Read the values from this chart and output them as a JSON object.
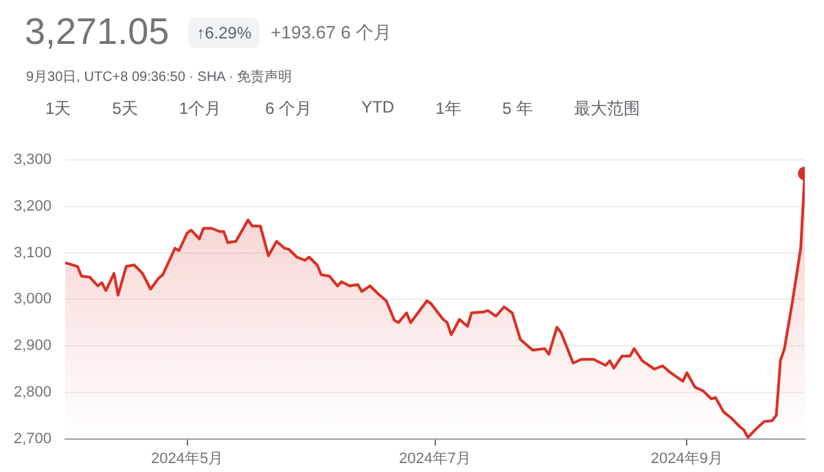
{
  "chart_data": {
    "type": "area",
    "title": "3,271.05",
    "subtitle": "9月30日, UTC+8 09:36:50 · SHA · 免责声明",
    "annotations": [
      "↑6.29%",
      "+193.67 6 个月",
      "1天",
      "5天",
      "1个月",
      "6 个月",
      "YTD",
      "1年",
      "5 年",
      "最大范围"
    ],
    "x": [
      "2024-04-01",
      "2024-04-04",
      "2024-04-05",
      "2024-04-07",
      "2024-04-09",
      "2024-04-10",
      "2024-04-11",
      "2024-04-13",
      "2024-04-14",
      "2024-04-16",
      "2024-04-18",
      "2024-04-20",
      "2024-04-22",
      "2024-04-24",
      "2024-04-25",
      "2024-04-28",
      "2024-04-29",
      "2024-05-01",
      "2024-05-02",
      "2024-05-04",
      "2024-05-05",
      "2024-05-07",
      "2024-05-09",
      "2024-05-10",
      "2024-05-11",
      "2024-05-13",
      "2024-05-16",
      "2024-05-17",
      "2024-05-19",
      "2024-05-21",
      "2024-05-23",
      "2024-05-25",
      "2024-05-26",
      "2024-05-28",
      "2024-05-30",
      "2024-05-31",
      "2024-06-02",
      "2024-06-03",
      "2024-06-05",
      "2024-06-07",
      "2024-06-08",
      "2024-06-10",
      "2024-06-12",
      "2024-06-13",
      "2024-06-15",
      "2024-06-17",
      "2024-06-19",
      "2024-06-21",
      "2024-06-22",
      "2024-06-24",
      "2024-06-25",
      "2024-06-29",
      "2024-06-30",
      "2024-07-03",
      "2024-07-04",
      "2024-07-05",
      "2024-07-07",
      "2024-07-09",
      "2024-07-10",
      "2024-07-13",
      "2024-07-14",
      "2024-07-16",
      "2024-07-18",
      "2024-07-20",
      "2024-07-22",
      "2024-07-25",
      "2024-07-28",
      "2024-07-29",
      "2024-07-31",
      "2024-08-01",
      "2024-08-04",
      "2024-08-06",
      "2024-08-09",
      "2024-08-12",
      "2024-08-13",
      "2024-08-14",
      "2024-08-16",
      "2024-08-18",
      "2024-08-19",
      "2024-08-21",
      "2024-08-24",
      "2024-08-26",
      "2024-08-28",
      "2024-08-31",
      "2024-09-01",
      "2024-09-03",
      "2024-09-05",
      "2024-09-07",
      "2024-09-08",
      "2024-09-10",
      "2024-09-12",
      "2024-09-14",
      "2024-09-15",
      "2024-09-16",
      "2024-09-18",
      "2024-09-20",
      "2024-09-22",
      "2024-09-23",
      "2024-09-24",
      "2024-09-25",
      "2024-09-27",
      "2024-09-29",
      "2024-09-30"
    ],
    "series": [
      {
        "color": "#d93025",
        "values": [
          3079,
          3071,
          3050,
          3048,
          3029,
          3036,
          3019,
          3056,
          3009,
          3071,
          3074,
          3056,
          3022,
          3046,
          3053,
          3110,
          3105,
          3143,
          3149,
          3130,
          3153,
          3153,
          3146,
          3146,
          3122,
          3125,
          3171,
          3158,
          3158,
          3094,
          3125,
          3110,
          3108,
          3091,
          3084,
          3091,
          3074,
          3053,
          3050,
          3029,
          3038,
          3029,
          3032,
          3017,
          3029,
          3012,
          2997,
          2955,
          2950,
          2971,
          2950,
          2997,
          2991,
          2957,
          2950,
          2924,
          2957,
          2942,
          2971,
          2973,
          2976,
          2964,
          2984,
          2971,
          2914,
          2891,
          2894,
          2882,
          2940,
          2929,
          2863,
          2871,
          2871,
          2858,
          2868,
          2852,
          2878,
          2878,
          2894,
          2868,
          2850,
          2857,
          2842,
          2824,
          2842,
          2811,
          2803,
          2786,
          2789,
          2758,
          2744,
          2726,
          2719,
          2703,
          2721,
          2737,
          2739,
          2751,
          2868,
          2894,
          2997,
          3110,
          3271.05
        ]
      }
    ],
    "xlim": [
      "2024-04-01",
      "2024-09-30"
    ],
    "xticks": [
      {
        "value": "2024-05-01",
        "label": "2024年5月"
      },
      {
        "value": "2024-07-01",
        "label": "2024年7月"
      },
      {
        "value": "2024-09-01",
        "label": "2024年9月"
      }
    ],
    "ylim": [
      2700,
      3300
    ],
    "yticks": [
      {
        "value": 2700,
        "label": "2,700"
      },
      {
        "value": 2800,
        "label": "2,800"
      },
      {
        "value": 2900,
        "label": "2,900"
      },
      {
        "value": 3000,
        "label": "3,000"
      },
      {
        "value": 3100,
        "label": "3,100"
      },
      {
        "value": 3200,
        "label": "3,200"
      },
      {
        "value": 3300,
        "label": "3,300"
      }
    ],
    "grid": "y",
    "legend": false,
    "marker": "none",
    "line_style": "solid"
  }
}
